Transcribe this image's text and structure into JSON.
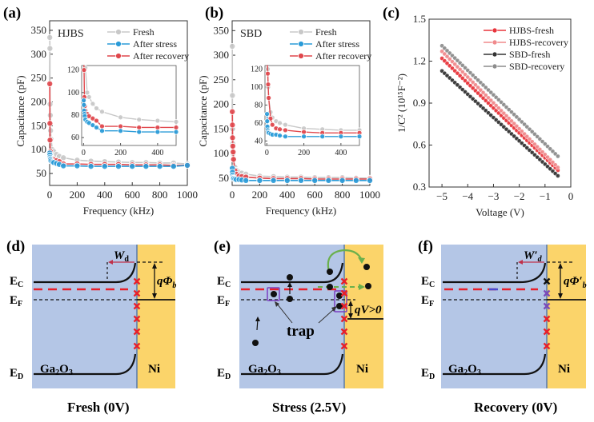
{
  "panels": {
    "a": {
      "label": "(a)"
    },
    "b": {
      "label": "(b)"
    },
    "c": {
      "label": "(c)"
    },
    "d": {
      "label": "(d)"
    },
    "e": {
      "label": "(e)"
    },
    "f": {
      "label": "(f)"
    }
  },
  "colors": {
    "fresh": "#c8c8c8",
    "after_stress": "#2a9bd8",
    "after_recovery": "#e0474c",
    "hjbs_fresh": "#e8353c",
    "hjbs_recovery": "#f08a8c",
    "sbd_fresh": "#333333",
    "sbd_recovery": "#8c8c8c",
    "semiconductor_bg": "#b4c6e6",
    "metal_bg": "#fbd46a",
    "trap_cross": "#e8202a",
    "trap_cross_recovered": "#7b4bb8",
    "trap_box": "#7b3fc0",
    "arrow_green": "#6ab04c",
    "wd_arrow": "#c0304a"
  },
  "chart_data": [
    {
      "id": "a",
      "type": "line",
      "device_label": "HJBS",
      "xlabel": "Frequency (kHz)",
      "ylabel": "Capacitance (pF)",
      "xlim": [
        0,
        1000
      ],
      "ylim": [
        25,
        370
      ],
      "xticks": [
        0,
        200,
        400,
        600,
        800,
        1000
      ],
      "yticks": [
        50,
        100,
        150,
        200,
        250,
        300,
        350
      ],
      "legend_position": "top-right",
      "series": [
        {
          "name": "Fresh",
          "x": [
            1,
            2,
            3,
            5,
            7,
            10,
            20,
            30,
            50,
            70,
            100,
            200,
            300,
            400,
            500,
            600,
            700,
            800,
            900,
            1000
          ],
          "y": [
            335,
            312,
            195,
            172,
            140,
            122,
            100,
            96,
            90,
            86,
            83,
            78,
            76,
            75,
            74,
            73,
            73,
            72,
            72,
            70
          ]
        },
        {
          "name": "After stress",
          "x": [
            1,
            2,
            3,
            5,
            7,
            10,
            20,
            30,
            50,
            70,
            100,
            200,
            300,
            400,
            500,
            600,
            700,
            800,
            900,
            1000
          ],
          "y": [
            93,
            89,
            84,
            81,
            79,
            76,
            74,
            73,
            71,
            69,
            66,
            66,
            65,
            65,
            65,
            65,
            65,
            65,
            65,
            67
          ]
        },
        {
          "name": "After recovery",
          "x": [
            1,
            2,
            3,
            5,
            7,
            10,
            20,
            30,
            50,
            70,
            100,
            200,
            300,
            400,
            500,
            600,
            700,
            800,
            900,
            1000
          ],
          "y": [
            238,
            155,
            120,
            96,
            88,
            84,
            81,
            79,
            77,
            75,
            70,
            70,
            69,
            69,
            69,
            68,
            68,
            68,
            67,
            67
          ]
        }
      ],
      "inset": {
        "xlim": [
          -10,
          500
        ],
        "ylim": [
          53,
          124
        ],
        "xticks": [
          0,
          200,
          400
        ],
        "yticks": [
          60,
          80,
          100,
          120
        ]
      }
    },
    {
      "id": "b",
      "type": "line",
      "device_label": "SBD",
      "xlabel": "Frequency (kHz)",
      "ylabel": "Capacitance (pF)",
      "xlim": [
        0,
        1000
      ],
      "ylim": [
        35,
        370
      ],
      "xticks": [
        0,
        200,
        400,
        600,
        800,
        1000
      ],
      "yticks": [
        50,
        100,
        150,
        200,
        250,
        300,
        350
      ],
      "legend_position": "top-right",
      "series": [
        {
          "name": "Fresh",
          "x": [
            1,
            2,
            3,
            5,
            7,
            10,
            20,
            30,
            50,
            70,
            100,
            200,
            300,
            400,
            500,
            600,
            700,
            800,
            900,
            1000
          ],
          "y": [
            318,
            218,
            150,
            120,
            100,
            88,
            72,
            66,
            62,
            60,
            58,
            54,
            53,
            52,
            52,
            51,
            51,
            51,
            50,
            50
          ]
        },
        {
          "name": "After stress",
          "x": [
            1,
            2,
            3,
            5,
            7,
            10,
            20,
            30,
            50,
            70,
            100,
            200,
            300,
            400,
            500,
            600,
            700,
            800,
            900,
            1000
          ],
          "y": [
            70,
            62,
            56,
            52,
            50,
            49,
            48,
            47,
            47,
            46,
            45,
            45,
            45,
            45,
            45,
            45,
            45,
            45,
            45,
            45
          ]
        },
        {
          "name": "After recovery",
          "x": [
            1,
            2,
            3,
            5,
            7,
            10,
            20,
            30,
            50,
            70,
            100,
            200,
            300,
            400,
            500,
            600,
            700,
            800,
            900,
            1000
          ],
          "y": [
            185,
            158,
            132,
            115,
            103,
            88,
            65,
            58,
            54,
            53,
            52,
            50,
            49,
            49,
            49,
            48,
            48,
            48,
            48,
            48
          ]
        }
      ],
      "inset": {
        "xlim": [
          -10,
          500
        ],
        "ylim": [
          35,
          124
        ],
        "xticks": [
          0,
          200,
          400
        ],
        "yticks": [
          40,
          60,
          80,
          100,
          120
        ]
      }
    },
    {
      "id": "c",
      "type": "line",
      "xlabel": "Voltage (V)",
      "ylabel": "1/C² (10¹⁵F⁻²)",
      "xlim": [
        -5.5,
        0
      ],
      "ylim": [
        0.3,
        1.5
      ],
      "xticks": [
        -5,
        -4,
        -3,
        -2,
        -1,
        0
      ],
      "xtick_labels": [
        "−5",
        "−4",
        "−3",
        "−2",
        "−1",
        "0"
      ],
      "yticks": [
        0.3,
        0.6,
        0.9,
        1.2,
        1.5
      ],
      "ytick_labels": [
        "0.3",
        "0.6",
        "0.9",
        "1.2",
        "1.5"
      ],
      "legend_position": "top-right",
      "series": [
        {
          "name": "HJBS-fresh",
          "x_start": -5.0,
          "x_end": -0.5,
          "y_start": 1.22,
          "y_end": 0.42
        },
        {
          "name": "HJBS-recovery",
          "x_start": -5.0,
          "x_end": -0.5,
          "y_start": 1.27,
          "y_end": 0.44
        },
        {
          "name": "SBD-fresh",
          "x_start": -5.0,
          "x_end": -0.5,
          "y_start": 1.13,
          "y_end": 0.38
        },
        {
          "name": "SBD-recovery",
          "x_start": -5.0,
          "x_end": -0.5,
          "y_start": 1.31,
          "y_end": 0.52
        }
      ]
    }
  ],
  "diagrams": {
    "d": {
      "caption": "Fresh (0V)",
      "ec": "E",
      "ec_sub": "C",
      "ef": "E",
      "ef_sub": "F",
      "ed": "E",
      "ed_sub": "D",
      "material_left": "Ga",
      "material_left_sub1": "2",
      "material_left_mid": "O",
      "material_left_sub2": "3",
      "material_right": "Ni",
      "wd_label": "W",
      "wd_sub": "d",
      "barrier_label": "qΦ",
      "barrier_sub": "b"
    },
    "e": {
      "caption": "Stress (2.5V)",
      "ec": "E",
      "ec_sub": "C",
      "ef": "E",
      "ef_sub": "F",
      "ed": "E",
      "ed_sub": "D",
      "material_left": "Ga",
      "material_left_sub1": "2",
      "material_left_mid": "O",
      "material_left_sub2": "3",
      "material_right": "Ni",
      "trap_label": "trap",
      "bias_label": "qV>0"
    },
    "f": {
      "caption": "Recovery (0V)",
      "ec": "E",
      "ec_sub": "C",
      "ef": "E",
      "ef_sub": "F",
      "ed": "E",
      "ed_sub": "D",
      "material_left": "Ga",
      "material_left_sub1": "2",
      "material_left_mid": "O",
      "material_left_sub2": "3",
      "material_right": "Ni",
      "wd_label": "W′",
      "wd_sub": "d",
      "barrier_label": "qΦ′",
      "barrier_sub": "b"
    }
  }
}
